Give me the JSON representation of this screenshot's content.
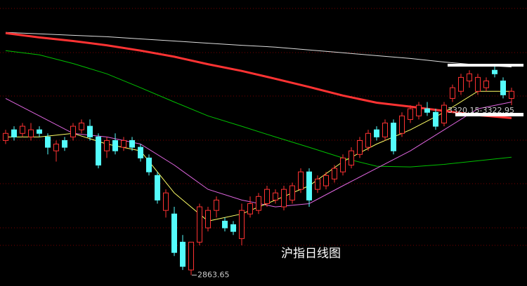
{
  "chart_data": {
    "type": "candlestick",
    "title": "沪指日线图",
    "annotations": [
      "2863.65",
      "3320.15-3322.95"
    ],
    "up_color": "#ff3232",
    "down_color": "#54fcfc",
    "ylim": [
      2833,
      3635
    ],
    "open": [
      3241,
      3271,
      3261,
      3251,
      3271,
      3251,
      3212,
      3241,
      3251,
      3271,
      3281,
      3251,
      3212,
      3241,
      3222,
      3241,
      3222,
      3192,
      3143,
      3045,
      3035,
      2956,
      2878,
      2956,
      2996,
      3045,
      3015,
      3005,
      2966,
      3035,
      3045,
      3064,
      3074,
      3055,
      3074,
      3104,
      3153,
      3104,
      3114,
      3133,
      3153,
      3172,
      3202,
      3222,
      3271,
      3251,
      3290,
      3261,
      3300,
      3310,
      3330,
      3320,
      3290,
      3359,
      3379,
      3408,
      3379,
      3389,
      3438,
      3408,
      3359
    ],
    "high": [
      3271,
      3281,
      3290,
      3290,
      3281,
      3261,
      3241,
      3251,
      3290,
      3300,
      3300,
      3261,
      3251,
      3261,
      3251,
      3251,
      3231,
      3202,
      3153,
      3104,
      3055,
      2976,
      2956,
      3064,
      3055,
      3084,
      3025,
      3015,
      3064,
      3084,
      3094,
      3114,
      3104,
      3114,
      3123,
      3163,
      3163,
      3143,
      3153,
      3172,
      3202,
      3222,
      3251,
      3271,
      3281,
      3300,
      3300,
      3320,
      3340,
      3349,
      3349,
      3330,
      3349,
      3398,
      3428,
      3438,
      3428,
      3418,
      3454,
      3418,
      3389
    ],
    "low": [
      3231,
      3241,
      3251,
      3241,
      3251,
      3202,
      3182,
      3212,
      3241,
      3261,
      3241,
      3163,
      3192,
      3202,
      3212,
      3212,
      3182,
      3143,
      3064,
      3025,
      2917,
      2878,
      2863.65,
      2947,
      2986,
      3025,
      2986,
      2976,
      2947,
      3025,
      3035,
      3055,
      3064,
      3045,
      3064,
      3094,
      3055,
      3094,
      3104,
      3123,
      3143,
      3163,
      3192,
      3212,
      3241,
      3241,
      3202,
      3251,
      3290,
      3300,
      3310,
      3271,
      3281,
      3349,
      3369,
      3389,
      3369,
      3379,
      3418,
      3359,
      3340
    ],
    "close": [
      3261,
      3251,
      3281,
      3271,
      3261,
      3222,
      3231,
      3222,
      3281,
      3290,
      3251,
      3172,
      3241,
      3212,
      3241,
      3222,
      3192,
      3153,
      3074,
      3094,
      2927,
      2888,
      2956,
      3055,
      3045,
      3074,
      2996,
      2986,
      3045,
      3064,
      3084,
      3104,
      3094,
      3104,
      3114,
      3153,
      3074,
      3133,
      3143,
      3163,
      3192,
      3212,
      3241,
      3261,
      3251,
      3290,
      3212,
      3310,
      3330,
      3340,
      3320,
      3281,
      3340,
      3389,
      3418,
      3428,
      3418,
      3408,
      3428,
      3369,
      3379
    ],
    "series": [
      {
        "color": "#dddddd",
        "width": 1,
        "x": [
          0,
          4,
          8,
          12,
          16,
          20,
          24,
          28,
          32,
          36,
          40,
          44,
          48,
          52,
          56,
          60
        ],
        "values": [
          3544,
          3540,
          3536,
          3532,
          3526,
          3520,
          3514,
          3508,
          3503,
          3495,
          3487,
          3479,
          3471,
          3461,
          3453,
          3447
        ]
      },
      {
        "color": "#00c000",
        "width": 1,
        "x": [
          0,
          4,
          8,
          12,
          16,
          20,
          24,
          28,
          32,
          36,
          40,
          44,
          48,
          52,
          56,
          60
        ],
        "values": [
          3493,
          3481,
          3457,
          3428,
          3389,
          3349,
          3310,
          3281,
          3251,
          3222,
          3192,
          3169,
          3167,
          3174,
          3184,
          3194
        ]
      },
      {
        "color": "#e066e0",
        "width": 1,
        "x": [
          0,
          4,
          8,
          12,
          16,
          20,
          24,
          28,
          32,
          36,
          40,
          44,
          48,
          52,
          56,
          60
        ],
        "values": [
          3359,
          3310,
          3261,
          3251,
          3231,
          3172,
          3104,
          3074,
          3055,
          3064,
          3114,
          3163,
          3212,
          3271,
          3330,
          3349
        ]
      },
      {
        "color": "#ffff66",
        "width": 1,
        "x": [
          0,
          4,
          8,
          12,
          16,
          20,
          24,
          28,
          32,
          36,
          40,
          44,
          48,
          52,
          56,
          60
        ],
        "values": [
          3251,
          3251,
          3261,
          3231,
          3212,
          3094,
          3015,
          3035,
          3074,
          3114,
          3182,
          3231,
          3271,
          3320,
          3379,
          3379
        ]
      },
      {
        "color": "#ff3333",
        "width": 3,
        "x": [
          0,
          4,
          8,
          12,
          16,
          20,
          24,
          28,
          32,
          36,
          40,
          44,
          48,
          52,
          56,
          60
        ],
        "values": [
          3542,
          3530,
          3520,
          3508,
          3493,
          3476,
          3455,
          3436,
          3414,
          3391,
          3367,
          3347,
          3336,
          3324,
          3312,
          3304
        ]
      }
    ]
  }
}
